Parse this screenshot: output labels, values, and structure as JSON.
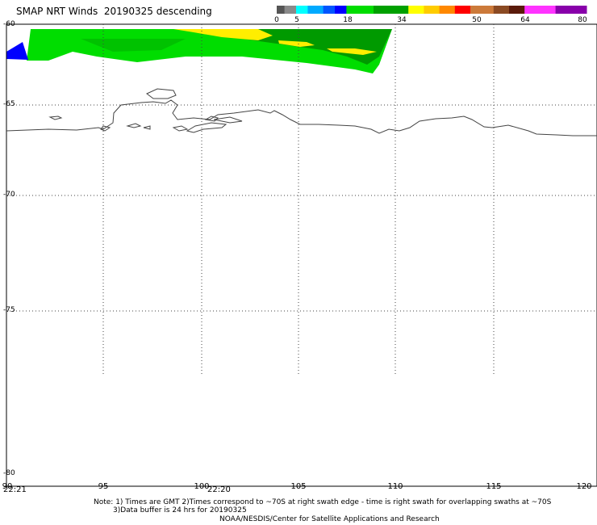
{
  "title": "SMAP NRT Winds  20190325 descending",
  "colorbar": {
    "ticks": [
      "0",
      "5",
      "18",
      "34",
      "50",
      "64",
      "80"
    ],
    "segments": [
      {
        "from": 0,
        "to": 2,
        "color": "#555555"
      },
      {
        "from": 2,
        "to": 5,
        "color": "#8a8a8a"
      },
      {
        "from": 5,
        "to": 8,
        "color": "#00ffff"
      },
      {
        "from": 8,
        "to": 12,
        "color": "#00aaff"
      },
      {
        "from": 12,
        "to": 15,
        "color": "#0055ff"
      },
      {
        "from": 15,
        "to": 18,
        "color": "#0000ff"
      },
      {
        "from": 18,
        "to": 25,
        "color": "#00dd00"
      },
      {
        "from": 25,
        "to": 34,
        "color": "#00a000"
      },
      {
        "from": 34,
        "to": 38,
        "color": "#ffff00"
      },
      {
        "from": 38,
        "to": 42,
        "color": "#ffcc00"
      },
      {
        "from": 42,
        "to": 46,
        "color": "#ff8800"
      },
      {
        "from": 46,
        "to": 50,
        "color": "#ff0000"
      },
      {
        "from": 50,
        "to": 56,
        "color": "#cc7a3a"
      },
      {
        "from": 56,
        "to": 60,
        "color": "#8b4a23"
      },
      {
        "from": 60,
        "to": 64,
        "color": "#5a1a0a"
      },
      {
        "from": 64,
        "to": 72,
        "color": "#ff33ff"
      },
      {
        "from": 72,
        "to": 80,
        "color": "#8800aa"
      }
    ]
  },
  "map": {
    "lat_labels": [
      "-60",
      "-65",
      "-70",
      "-75",
      "-80"
    ],
    "lon_labels": [
      "90",
      "95",
      "100",
      "105",
      "110",
      "115",
      "120"
    ],
    "time_labels": [
      "22:21",
      "22:20"
    ]
  },
  "notes": {
    "line1": "Note: 1) Times are GMT 2)Times correspond to ~70S at right swath edge - time is right swath for overlapping swaths at ~70S",
    "line2": "3)Data buffer is 24 hrs for 20190325",
    "line3": "NOAA/NESDIS/Center for Satellite Applications and Research"
  },
  "colors": {
    "wind_green_light": "#00ee00",
    "wind_green_dark": "#008800",
    "wind_yellow": "#ffee00",
    "wind_blue": "#0000ff",
    "coastline": "#444444",
    "grid": "#444444"
  }
}
